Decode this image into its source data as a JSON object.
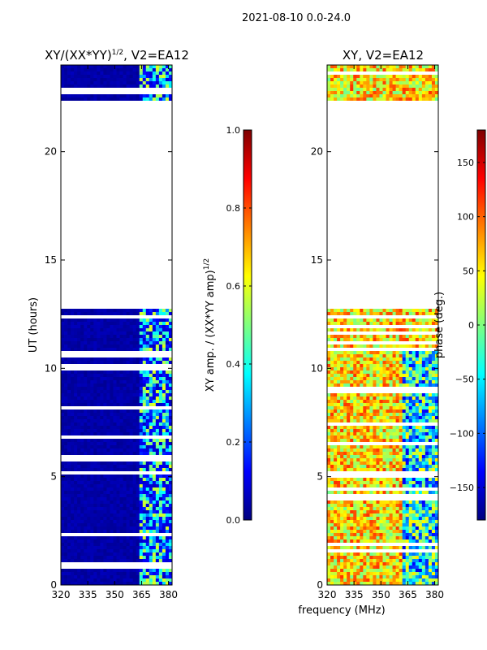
{
  "figure": {
    "suptitle": "2021-08-10 0.0-24.0"
  },
  "chart_data": [
    {
      "type": "heatmap",
      "title": "XY/(XX*YY)",
      "title_exp": "1/2",
      "title_suffix": ", V2=EA12",
      "xlabel": "",
      "ylabel": "UT (hours)",
      "xlim": [
        320,
        382
      ],
      "ylim": [
        0,
        24
      ],
      "xticks": [
        320,
        335,
        350,
        365,
        380
      ],
      "yticks": [
        0,
        5,
        10,
        15,
        20
      ],
      "xtick_labels": [
        "320",
        "335",
        "350",
        "365",
        "380"
      ],
      "ytick_labels": [
        "0",
        "5",
        "10",
        "15",
        "20"
      ],
      "colorbar": {
        "label": "XY amp. / (XX*YY amp)",
        "label_exp": "1/2",
        "range": [
          0.0,
          1.0
        ],
        "ticks": [
          0.0,
          0.2,
          0.4,
          0.6,
          0.8,
          1.0
        ],
        "tick_labels": [
          "0.0",
          "0.2",
          "0.4",
          "0.6",
          "0.8",
          "1.0"
        ],
        "colormap": "jet"
      },
      "data_gaps_ut": [
        [
          12.8,
          22.4
        ]
      ]
    },
    {
      "type": "heatmap",
      "title": "XY, V2=EA12",
      "xlabel": "frequency (MHz)",
      "ylabel": "",
      "xlim": [
        320,
        382
      ],
      "ylim": [
        0,
        24
      ],
      "xticks": [
        320,
        335,
        350,
        365,
        380
      ],
      "yticks": [
        0,
        5,
        10,
        15,
        20
      ],
      "xtick_labels": [
        "320",
        "335",
        "350",
        "365",
        "380"
      ],
      "ytick_labels": [
        "0",
        "5",
        "10",
        "15",
        "20"
      ],
      "colorbar": {
        "label": "phase (deg.)",
        "range": [
          -180,
          180
        ],
        "ticks": [
          -150,
          -100,
          -50,
          0,
          50,
          100,
          150
        ],
        "tick_labels": [
          "−150",
          "−100",
          "−50",
          "0",
          "50",
          "100",
          "150"
        ],
        "colormap": "jet"
      },
      "data_gaps_ut": [
        [
          12.8,
          22.4
        ]
      ]
    }
  ],
  "colors": {
    "jet": [
      "#00007f",
      "#0000ff",
      "#007fff",
      "#00ffff",
      "#7fff7f",
      "#ffff00",
      "#ff7f00",
      "#ff0000",
      "#7f0000"
    ]
  }
}
